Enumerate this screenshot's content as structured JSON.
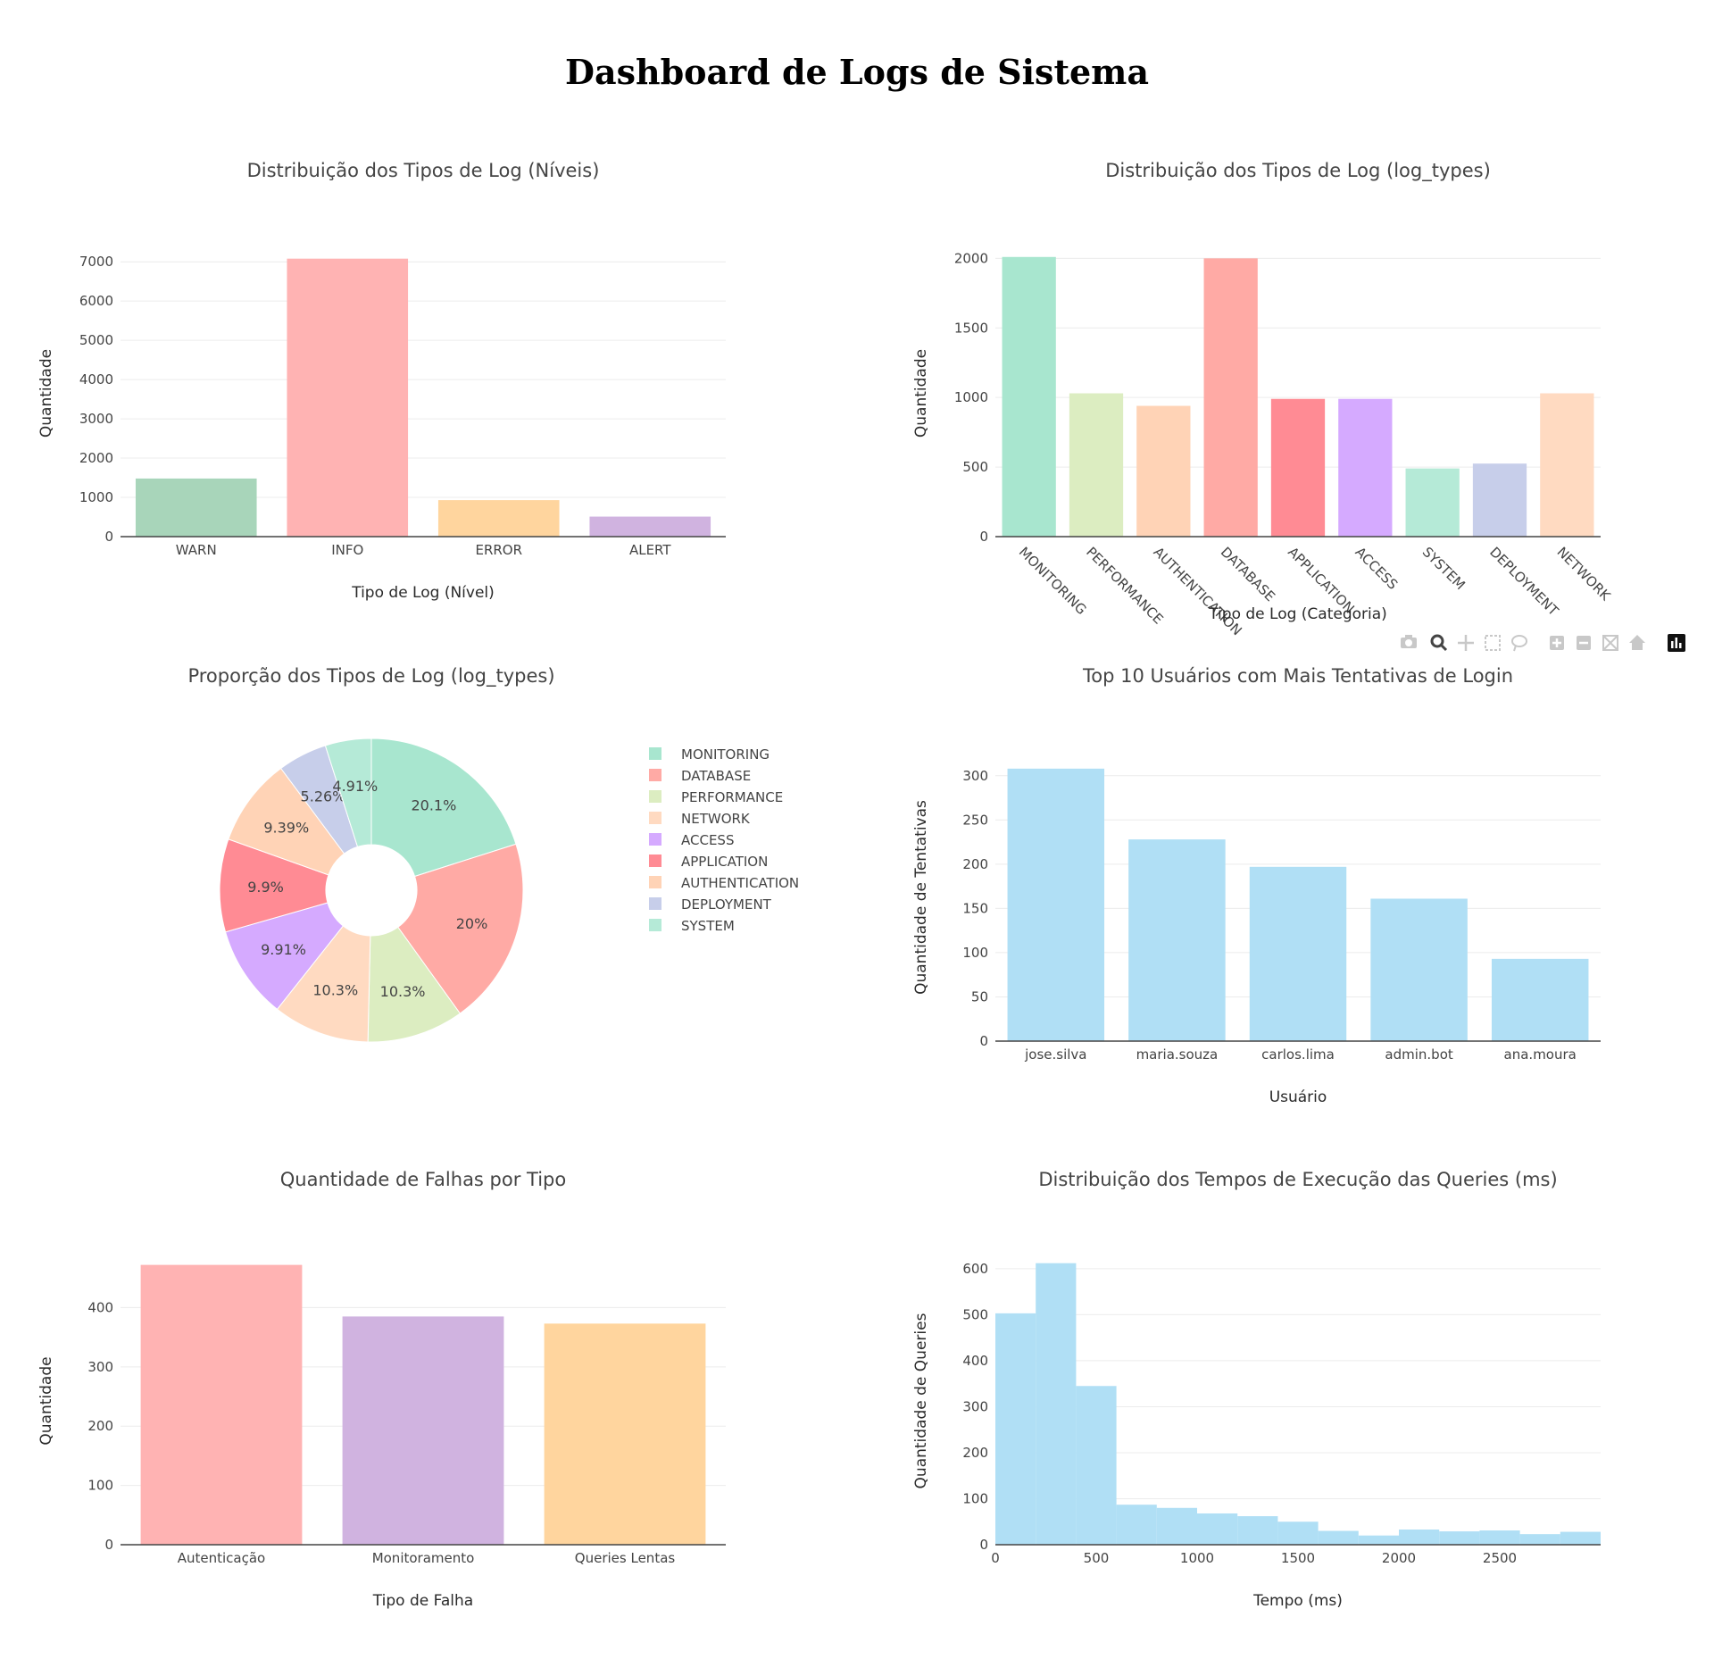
{
  "page": {
    "title": "Dashboard de Logs de Sistema"
  },
  "colors": {
    "pastel_bar": [
      "#a8d5ba",
      "#ffb3b3",
      "#ffd59e",
      "#d0b3e0"
    ],
    "log_types": {
      "MONITORING": "#a8e6cf",
      "PERFORMANCE": "#dcedc1",
      "AUTHENTICATION": "#ffd3b6",
      "DATABASE": "#ffaaa5",
      "APPLICATION": "#ff8b94",
      "ACCESS": "#d5aaff",
      "SYSTEM": "#b5ead7",
      "DEPLOYMENT": "#c7ceea",
      "NETWORK": "#ffdac1"
    },
    "blue": "#b0dff5"
  },
  "modebar": {
    "icons": [
      "camera-icon",
      "zoom-icon",
      "pan-icon",
      "box-select-icon",
      "lasso-icon",
      "zoom-in-icon",
      "zoom-out-icon",
      "autoscale-icon",
      "home-icon",
      "plotly-logo-icon"
    ]
  },
  "chart_data": [
    {
      "id": "levels",
      "type": "bar",
      "title": "Distribuição dos Tipos de Log (Níveis)",
      "xlabel": "Tipo de Log (Nível)",
      "ylabel": "Quantidade",
      "categories": [
        "WARN",
        "INFO",
        "ERROR",
        "ALERT"
      ],
      "values": [
        1480,
        7080,
        930,
        510
      ],
      "ylim": [
        0,
        7300
      ],
      "yticks": [
        0,
        1000,
        2000,
        3000,
        4000,
        5000,
        6000,
        7000
      ],
      "ytick_labels": [
        "0",
        "1000",
        "2000",
        "3000",
        "4000",
        "5000",
        "6000",
        "7000"
      ]
    },
    {
      "id": "log_types",
      "type": "bar",
      "title": "Distribuição dos Tipos de Log (log_types)",
      "xlabel": "Tipo de Log (Categoria)",
      "ylabel": "Quantidade",
      "categories": [
        "MONITORING",
        "PERFORMANCE",
        "AUTHENTICATION",
        "DATABASE",
        "APPLICATION",
        "ACCESS",
        "SYSTEM",
        "DEPLOYMENT",
        "NETWORK"
      ],
      "values": [
        2010,
        1030,
        940,
        2000,
        990,
        990,
        490,
        525,
        1030
      ],
      "ylim": [
        0,
        2060
      ],
      "yticks": [
        0,
        500,
        1000,
        1500,
        2000
      ],
      "ytick_labels": [
        "0",
        "500",
        "1000",
        "1500",
        "2000"
      ]
    },
    {
      "id": "proportion",
      "type": "pie",
      "title": "Proporção dos Tipos de Log (log_types)",
      "hole": 0.3,
      "legend_position": "right",
      "labels": [
        "MONITORING",
        "DATABASE",
        "PERFORMANCE",
        "NETWORK",
        "ACCESS",
        "APPLICATION",
        "AUTHENTICATION",
        "DEPLOYMENT",
        "SYSTEM"
      ],
      "values": [
        20.1,
        20,
        10.3,
        10.3,
        9.91,
        9.9,
        9.39,
        5.26,
        4.91
      ],
      "slice_labels": [
        "20.1%",
        "20%",
        "10.3%",
        "10.3%",
        "9.91%",
        "9.9%",
        "9.39%",
        "5.26%",
        "4.91%"
      ]
    },
    {
      "id": "top_users",
      "type": "bar",
      "title": "Top 10 Usuários com Mais Tentativas de Login",
      "xlabel": "Usuário",
      "ylabel": "Quantidade de Tentativas",
      "categories": [
        "jose.silva",
        "maria.souza",
        "carlos.lima",
        "admin.bot",
        "ana.moura"
      ],
      "values": [
        308,
        228,
        197,
        161,
        93
      ],
      "ylim": [
        0,
        325
      ],
      "yticks": [
        0,
        50,
        100,
        150,
        200,
        250,
        300
      ],
      "ytick_labels": [
        "0",
        "50",
        "100",
        "150",
        "200",
        "250",
        "300"
      ]
    },
    {
      "id": "failures",
      "type": "bar",
      "title": "Quantidade de Falhas por Tipo",
      "xlabel": "Tipo de Falha",
      "ylabel": "Quantidade",
      "categories": [
        "Autenticação",
        "Monitoramento",
        "Queries Lentas"
      ],
      "values": [
        472,
        385,
        373
      ],
      "ylim": [
        0,
        485
      ],
      "yticks": [
        0,
        100,
        200,
        300,
        400
      ],
      "ytick_labels": [
        "0",
        "100",
        "200",
        "300",
        "400"
      ]
    },
    {
      "id": "query_times",
      "type": "bar",
      "subtype": "histogram",
      "title": "Distribuição dos Tempos de Execução das Queries (ms)",
      "xlabel": "Tempo (ms)",
      "ylabel": "Quantidade de Queries",
      "bin_edges": [
        0,
        200,
        400,
        600,
        800,
        1000,
        1200,
        1400,
        1600,
        1800,
        2000,
        2200,
        2400,
        2600,
        2800,
        3000
      ],
      "values": [
        503,
        612,
        345,
        87,
        80,
        68,
        62,
        50,
        30,
        20,
        33,
        29,
        31,
        23,
        28
      ],
      "xlim": [
        0,
        3000
      ],
      "ylim": [
        0,
        625
      ],
      "xticks": [
        0,
        500,
        1000,
        1500,
        2000,
        2500
      ],
      "xtick_labels": [
        "0",
        "500",
        "1000",
        "1500",
        "2000",
        "2500"
      ],
      "yticks": [
        0,
        100,
        200,
        300,
        400,
        500,
        600
      ],
      "ytick_labels": [
        "0",
        "100",
        "200",
        "300",
        "400",
        "500",
        "600"
      ]
    }
  ]
}
